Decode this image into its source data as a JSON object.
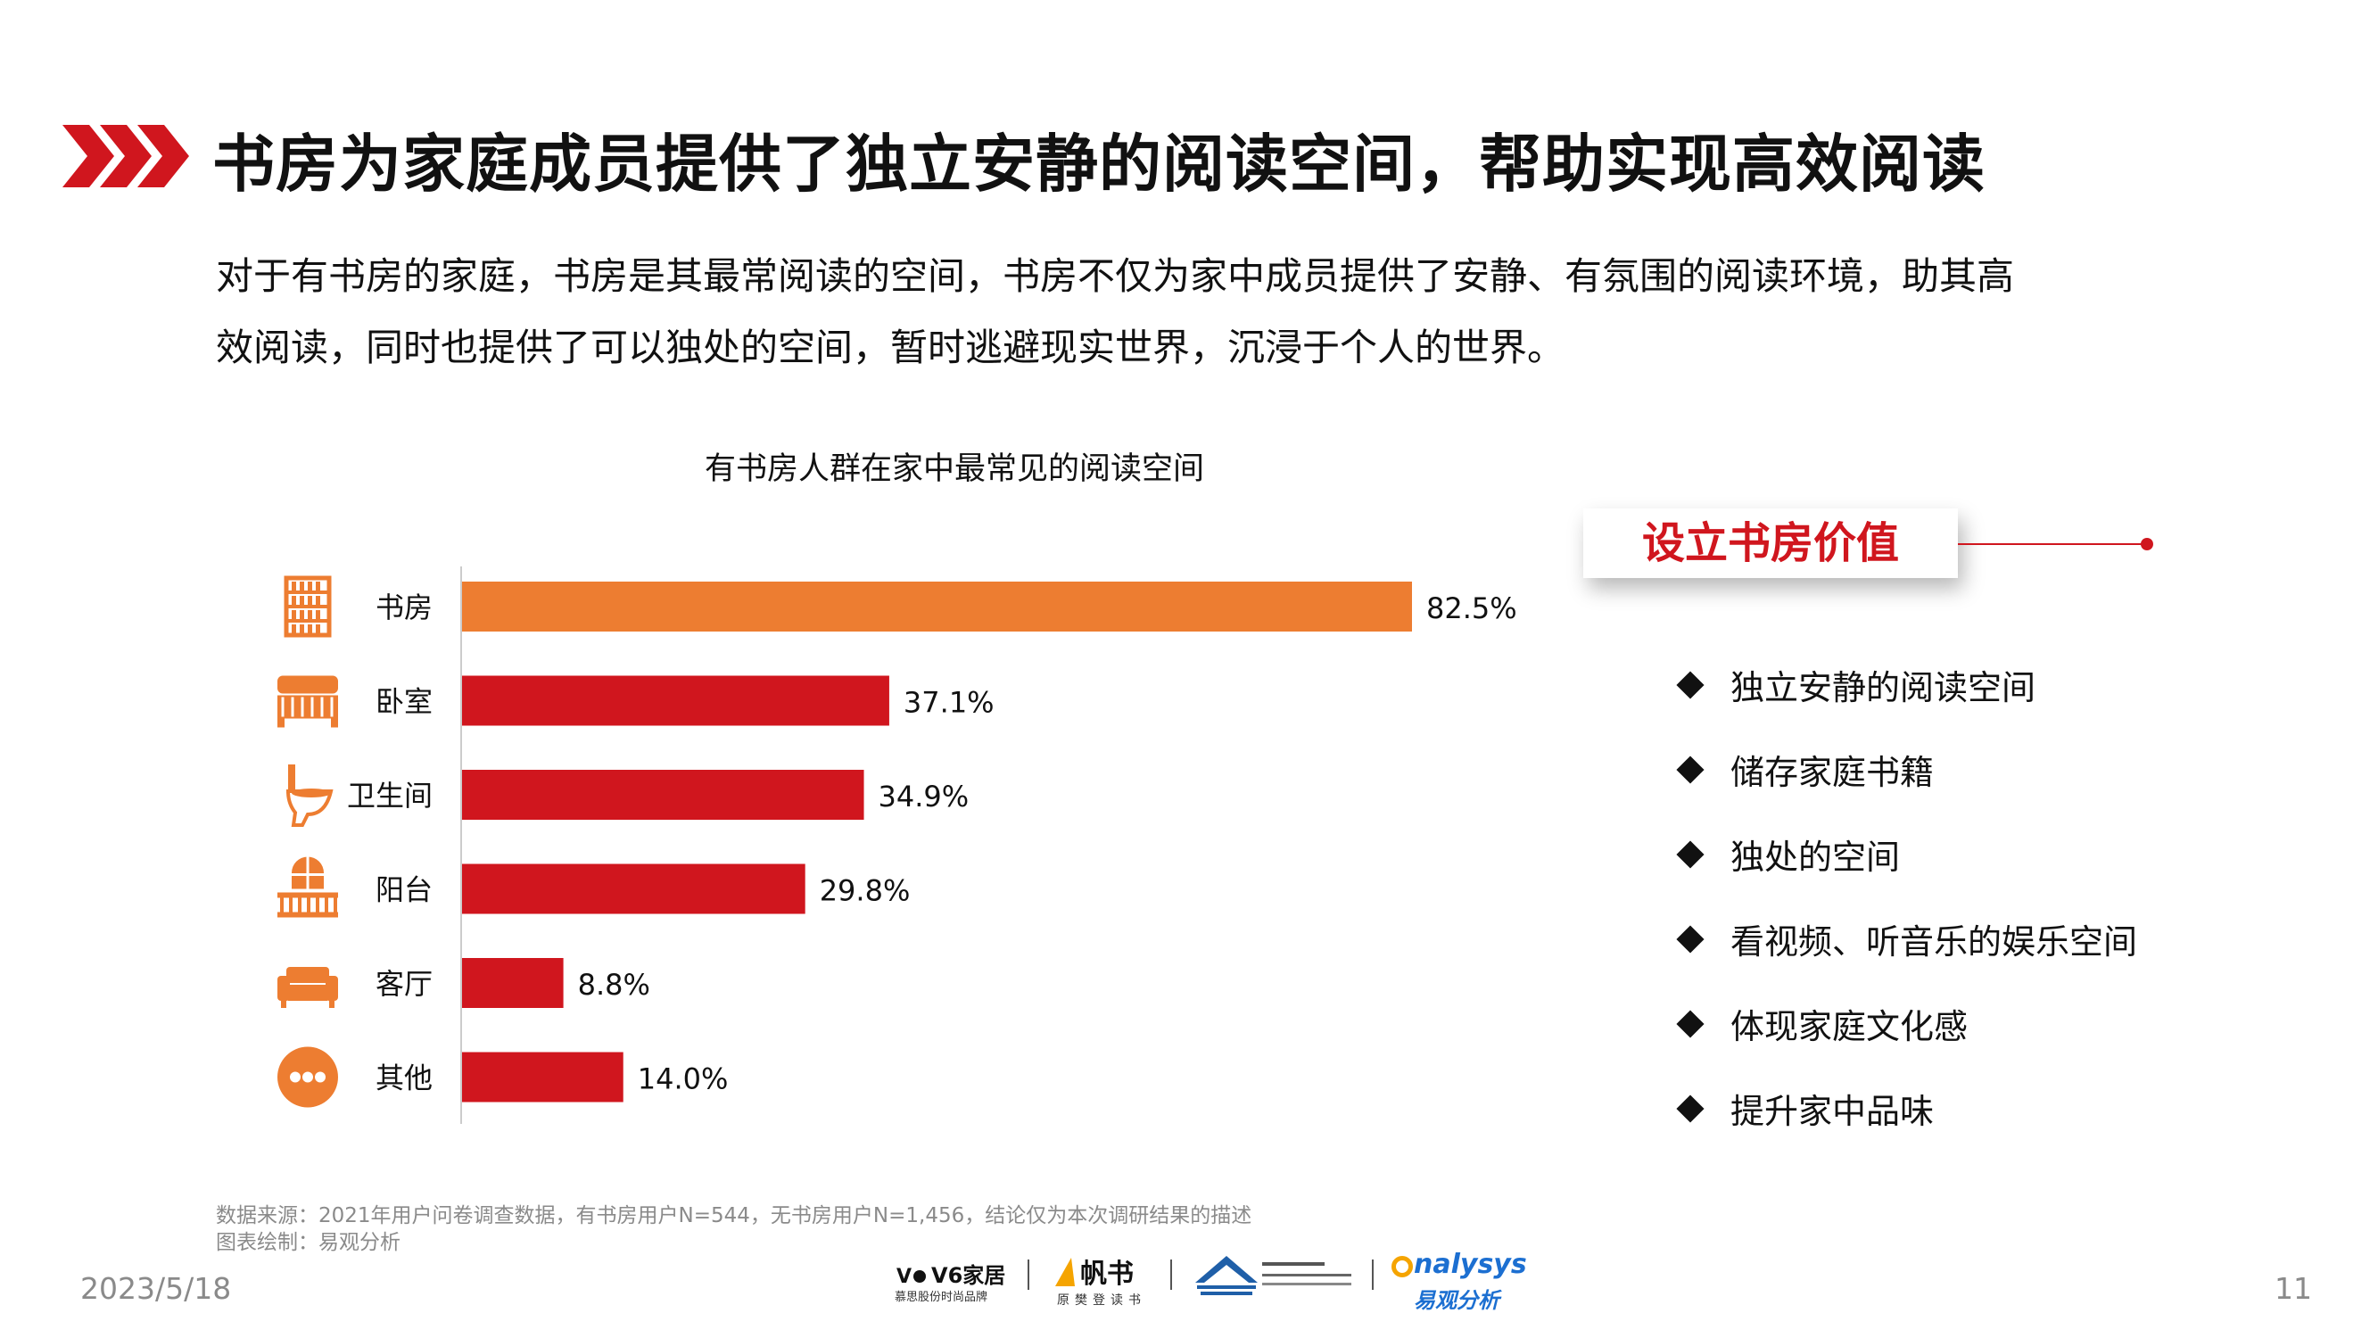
{
  "header": {
    "title": "书房为家庭成员提供了独立安静的阅读空间，帮助实现高效阅读",
    "intro_line1": "对于有书房的家庭，书房是其最常阅读的空间，书房不仅为家中成员提供了安静、有氛围的阅读环境，助其高",
    "intro_line2": "效阅读，同时也提供了可以独处的空间，暂时逃避现实世界，沉浸于个人的世界。"
  },
  "chart_data": {
    "type": "bar",
    "orientation": "horizontal",
    "title": "有书房人群在家中最常见的阅读空间",
    "categories": [
      "书房",
      "卧室",
      "卫生间",
      "阳台",
      "客厅",
      "其他"
    ],
    "values": [
      82.5,
      37.1,
      34.9,
      29.8,
      8.8,
      14.0
    ],
    "value_labels": [
      "82.5%",
      "37.1%",
      "34.9%",
      "29.8%",
      "8.8%",
      "14.0%"
    ],
    "icons": [
      "bookshelf-icon",
      "bed-icon",
      "toilet-icon",
      "balcony-icon",
      "sofa-icon",
      "more-dots-icon"
    ],
    "colors": [
      "#ed7d31",
      "#d0161e",
      "#d0161e",
      "#d0161e",
      "#d0161e",
      "#d0161e"
    ],
    "icon_color": "#ed7d31",
    "xlim": [
      0,
      100
    ],
    "grid": false
  },
  "value_panel": {
    "title": "设立书房价值",
    "items": [
      "独立安静的阅读空间",
      "储存家庭书籍",
      "独处的空间",
      "看视频、听音乐的娱乐空间",
      "体现家庭文化感",
      "提升家中品味"
    ]
  },
  "footer": {
    "source": "数据来源：2021年用户问卷调查数据，有书房用户N=544，无书房用户N=1,456，结论仅为本次调研结果的描述",
    "credit": "图表绘制：易观分析",
    "date": "2023/5/18",
    "page": "11",
    "logos": {
      "v6_main": "V6家居",
      "v6_sub": "慕思股份时尚品牌",
      "fanshu_main": "帆书",
      "fanshu_sub": "原樊登读书",
      "analysys_main": "nalysys",
      "analysys_sub": "易观分析"
    }
  },
  "colors": {
    "accent": "#d0161e",
    "orange": "#ed7d31",
    "gray": "#8a8a8a"
  }
}
